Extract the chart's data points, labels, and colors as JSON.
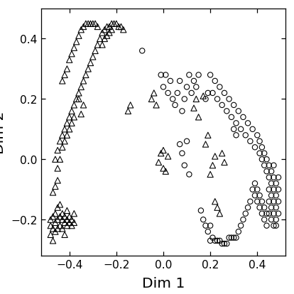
{
  "title": "",
  "xlabel": "Dim 1",
  "ylabel": "Dim 2",
  "xlim": [
    -0.52,
    0.52
  ],
  "ylim": [
    -0.32,
    0.5
  ],
  "xticks": [
    -0.4,
    -0.2,
    0.0,
    0.2,
    0.4
  ],
  "yticks": [
    -0.2,
    0.0,
    0.2,
    0.4
  ],
  "background_color": "#ffffff",
  "triangle_points": [
    [
      -0.48,
      -0.22
    ],
    [
      -0.48,
      -0.2
    ],
    [
      -0.48,
      -0.25
    ],
    [
      -0.47,
      -0.19
    ],
    [
      -0.47,
      -0.23
    ],
    [
      -0.47,
      -0.27
    ],
    [
      -0.46,
      -0.21
    ],
    [
      -0.46,
      -0.18
    ],
    [
      -0.46,
      -0.24
    ],
    [
      -0.45,
      -0.2
    ],
    [
      -0.45,
      -0.16
    ],
    [
      -0.45,
      -0.23
    ],
    [
      -0.44,
      -0.19
    ],
    [
      -0.44,
      -0.22
    ],
    [
      -0.44,
      -0.15
    ],
    [
      -0.43,
      -0.2
    ],
    [
      -0.43,
      -0.18
    ],
    [
      -0.43,
      -0.23
    ],
    [
      -0.42,
      -0.21
    ],
    [
      -0.42,
      -0.19
    ],
    [
      -0.42,
      -0.25
    ],
    [
      -0.41,
      -0.2
    ],
    [
      -0.41,
      -0.22
    ],
    [
      -0.41,
      -0.17
    ],
    [
      -0.4,
      -0.21
    ],
    [
      -0.4,
      -0.19
    ],
    [
      -0.39,
      -0.2
    ],
    [
      -0.39,
      -0.22
    ],
    [
      -0.38,
      -0.21
    ],
    [
      -0.38,
      -0.18
    ],
    [
      -0.47,
      -0.11
    ],
    [
      -0.46,
      -0.09
    ],
    [
      -0.45,
      -0.07
    ],
    [
      -0.46,
      0.0
    ],
    [
      -0.45,
      0.03
    ],
    [
      -0.45,
      -0.03
    ],
    [
      -0.44,
      0.06
    ],
    [
      -0.44,
      0.0
    ],
    [
      -0.43,
      0.08
    ],
    [
      -0.43,
      0.04
    ],
    [
      -0.42,
      0.1
    ],
    [
      -0.42,
      0.06
    ],
    [
      -0.41,
      0.12
    ],
    [
      -0.41,
      0.08
    ],
    [
      -0.4,
      0.14
    ],
    [
      -0.4,
      0.1
    ],
    [
      -0.39,
      0.12
    ],
    [
      -0.39,
      0.16
    ],
    [
      -0.38,
      0.14
    ],
    [
      -0.38,
      0.18
    ],
    [
      -0.37,
      0.2
    ],
    [
      -0.36,
      0.22
    ],
    [
      -0.35,
      0.24
    ],
    [
      -0.34,
      0.26
    ],
    [
      -0.33,
      0.28
    ],
    [
      -0.32,
      0.3
    ],
    [
      -0.31,
      0.32
    ],
    [
      -0.3,
      0.34
    ],
    [
      -0.29,
      0.36
    ],
    [
      -0.28,
      0.38
    ],
    [
      -0.27,
      0.4
    ],
    [
      -0.26,
      0.42
    ],
    [
      -0.25,
      0.43
    ],
    [
      -0.24,
      0.44
    ],
    [
      -0.23,
      0.44
    ],
    [
      -0.22,
      0.45
    ],
    [
      -0.21,
      0.45
    ],
    [
      -0.2,
      0.45
    ],
    [
      -0.19,
      0.44
    ],
    [
      -0.18,
      0.44
    ],
    [
      -0.17,
      0.43
    ],
    [
      -0.26,
      0.38
    ],
    [
      -0.25,
      0.4
    ],
    [
      -0.24,
      0.41
    ],
    [
      -0.23,
      0.42
    ],
    [
      -0.22,
      0.43
    ],
    [
      -0.35,
      0.15
    ],
    [
      -0.34,
      0.18
    ],
    [
      -0.36,
      0.2
    ],
    [
      -0.43,
      0.26
    ],
    [
      -0.42,
      0.28
    ],
    [
      -0.41,
      0.3
    ],
    [
      -0.4,
      0.33
    ],
    [
      -0.39,
      0.35
    ],
    [
      -0.38,
      0.37
    ],
    [
      -0.37,
      0.39
    ],
    [
      -0.36,
      0.41
    ],
    [
      -0.35,
      0.43
    ],
    [
      -0.34,
      0.44
    ],
    [
      -0.33,
      0.45
    ],
    [
      -0.32,
      0.45
    ],
    [
      -0.31,
      0.45
    ],
    [
      -0.3,
      0.45
    ],
    [
      -0.29,
      0.45
    ],
    [
      -0.28,
      0.44
    ],
    [
      -0.15,
      0.16
    ],
    [
      -0.14,
      0.18
    ],
    [
      -0.05,
      0.2
    ],
    [
      -0.04,
      0.22
    ],
    [
      -0.03,
      0.18
    ],
    [
      -0.02,
      -0.01
    ],
    [
      -0.01,
      0.02
    ],
    [
      0.0,
      -0.03
    ],
    [
      0.0,
      0.03
    ],
    [
      0.01,
      -0.04
    ],
    [
      0.02,
      0.01
    ],
    [
      0.13,
      0.17
    ],
    [
      0.14,
      0.2
    ],
    [
      0.15,
      0.14
    ],
    [
      0.17,
      0.21
    ],
    [
      0.18,
      0.05
    ],
    [
      0.19,
      0.08
    ],
    [
      0.2,
      -0.05
    ],
    [
      0.21,
      -0.02
    ],
    [
      0.22,
      0.01
    ],
    [
      0.25,
      0.02
    ],
    [
      0.26,
      -0.01
    ],
    [
      0.22,
      -0.14
    ],
    [
      0.23,
      -0.16
    ],
    [
      0.24,
      -0.18
    ]
  ],
  "circle_points": [
    [
      -0.09,
      0.36
    ],
    [
      -0.01,
      0.28
    ],
    [
      0.0,
      0.24
    ],
    [
      0.01,
      0.28
    ],
    [
      0.02,
      0.22
    ],
    [
      0.03,
      0.26
    ],
    [
      0.04,
      0.2
    ],
    [
      0.05,
      0.18
    ],
    [
      0.06,
      0.22
    ],
    [
      0.07,
      0.26
    ],
    [
      0.08,
      0.16
    ],
    [
      0.09,
      0.2
    ],
    [
      0.1,
      0.24
    ],
    [
      0.11,
      0.28
    ],
    [
      0.12,
      0.22
    ],
    [
      0.13,
      0.26
    ],
    [
      0.14,
      0.24
    ],
    [
      0.15,
      0.28
    ],
    [
      0.07,
      0.05
    ],
    [
      0.08,
      0.02
    ],
    [
      0.09,
      -0.02
    ],
    [
      0.1,
      0.06
    ],
    [
      0.11,
      -0.05
    ],
    [
      0.2,
      0.28
    ],
    [
      0.21,
      0.22
    ],
    [
      0.22,
      0.26
    ],
    [
      0.23,
      0.2
    ],
    [
      0.24,
      0.24
    ],
    [
      0.25,
      0.18
    ],
    [
      0.26,
      0.22
    ],
    [
      0.27,
      0.16
    ],
    [
      0.28,
      0.2
    ],
    [
      0.29,
      0.14
    ],
    [
      0.3,
      0.18
    ],
    [
      0.31,
      0.12
    ],
    [
      0.32,
      0.16
    ],
    [
      0.33,
      0.1
    ],
    [
      0.34,
      0.14
    ],
    [
      0.35,
      0.08
    ],
    [
      0.36,
      0.12
    ],
    [
      0.37,
      0.06
    ],
    [
      0.38,
      0.1
    ],
    [
      0.39,
      0.04
    ],
    [
      0.4,
      0.08
    ],
    [
      0.41,
      0.02
    ],
    [
      0.41,
      0.06
    ],
    [
      0.42,
      0.0
    ],
    [
      0.42,
      0.04
    ],
    [
      0.43,
      -0.02
    ],
    [
      0.43,
      0.02
    ],
    [
      0.44,
      -0.04
    ],
    [
      0.44,
      0.0
    ],
    [
      0.45,
      -0.06
    ],
    [
      0.45,
      -0.02
    ],
    [
      0.46,
      -0.08
    ],
    [
      0.46,
      -0.04
    ],
    [
      0.47,
      -0.1
    ],
    [
      0.47,
      -0.06
    ],
    [
      0.47,
      -0.02
    ],
    [
      0.48,
      -0.08
    ],
    [
      0.48,
      -0.12
    ],
    [
      0.48,
      -0.16
    ],
    [
      0.49,
      -0.1
    ],
    [
      0.49,
      -0.14
    ],
    [
      0.49,
      -0.18
    ],
    [
      0.49,
      -0.06
    ],
    [
      0.48,
      -0.2
    ],
    [
      0.48,
      -0.22
    ],
    [
      0.47,
      -0.14
    ],
    [
      0.47,
      -0.18
    ],
    [
      0.47,
      -0.22
    ],
    [
      0.46,
      -0.12
    ],
    [
      0.46,
      -0.16
    ],
    [
      0.46,
      -0.2
    ],
    [
      0.45,
      -0.1
    ],
    [
      0.45,
      -0.14
    ],
    [
      0.45,
      -0.18
    ],
    [
      0.44,
      -0.18
    ],
    [
      0.44,
      -0.22
    ],
    [
      0.43,
      -0.16
    ],
    [
      0.43,
      -0.2
    ],
    [
      0.42,
      -0.14
    ],
    [
      0.42,
      -0.18
    ],
    [
      0.41,
      -0.12
    ],
    [
      0.41,
      -0.16
    ],
    [
      0.4,
      -0.1
    ],
    [
      0.4,
      -0.14
    ],
    [
      0.39,
      -0.08
    ],
    [
      0.39,
      -0.12
    ],
    [
      0.38,
      -0.1
    ],
    [
      0.37,
      -0.14
    ],
    [
      0.36,
      -0.16
    ],
    [
      0.35,
      -0.18
    ],
    [
      0.34,
      -0.2
    ],
    [
      0.33,
      -0.22
    ],
    [
      0.32,
      -0.24
    ],
    [
      0.31,
      -0.26
    ],
    [
      0.3,
      -0.26
    ],
    [
      0.29,
      -0.26
    ],
    [
      0.28,
      -0.26
    ],
    [
      0.27,
      -0.28
    ],
    [
      0.26,
      -0.28
    ],
    [
      0.25,
      -0.28
    ],
    [
      0.24,
      -0.27
    ],
    [
      0.23,
      -0.27
    ],
    [
      0.22,
      -0.27
    ],
    [
      0.21,
      -0.26
    ],
    [
      0.2,
      -0.27
    ],
    [
      0.3,
      0.1
    ],
    [
      0.31,
      0.08
    ],
    [
      0.19,
      0.22
    ],
    [
      0.18,
      0.2
    ],
    [
      0.16,
      -0.17
    ],
    [
      0.17,
      -0.2
    ],
    [
      0.18,
      -0.22
    ],
    [
      0.19,
      -0.24
    ],
    [
      0.2,
      -0.22
    ]
  ],
  "marker_size_tri": 28,
  "marker_size_circ": 22,
  "linewidth": 0.7,
  "axis_labelsize": 13,
  "tick_labelsize": 10
}
